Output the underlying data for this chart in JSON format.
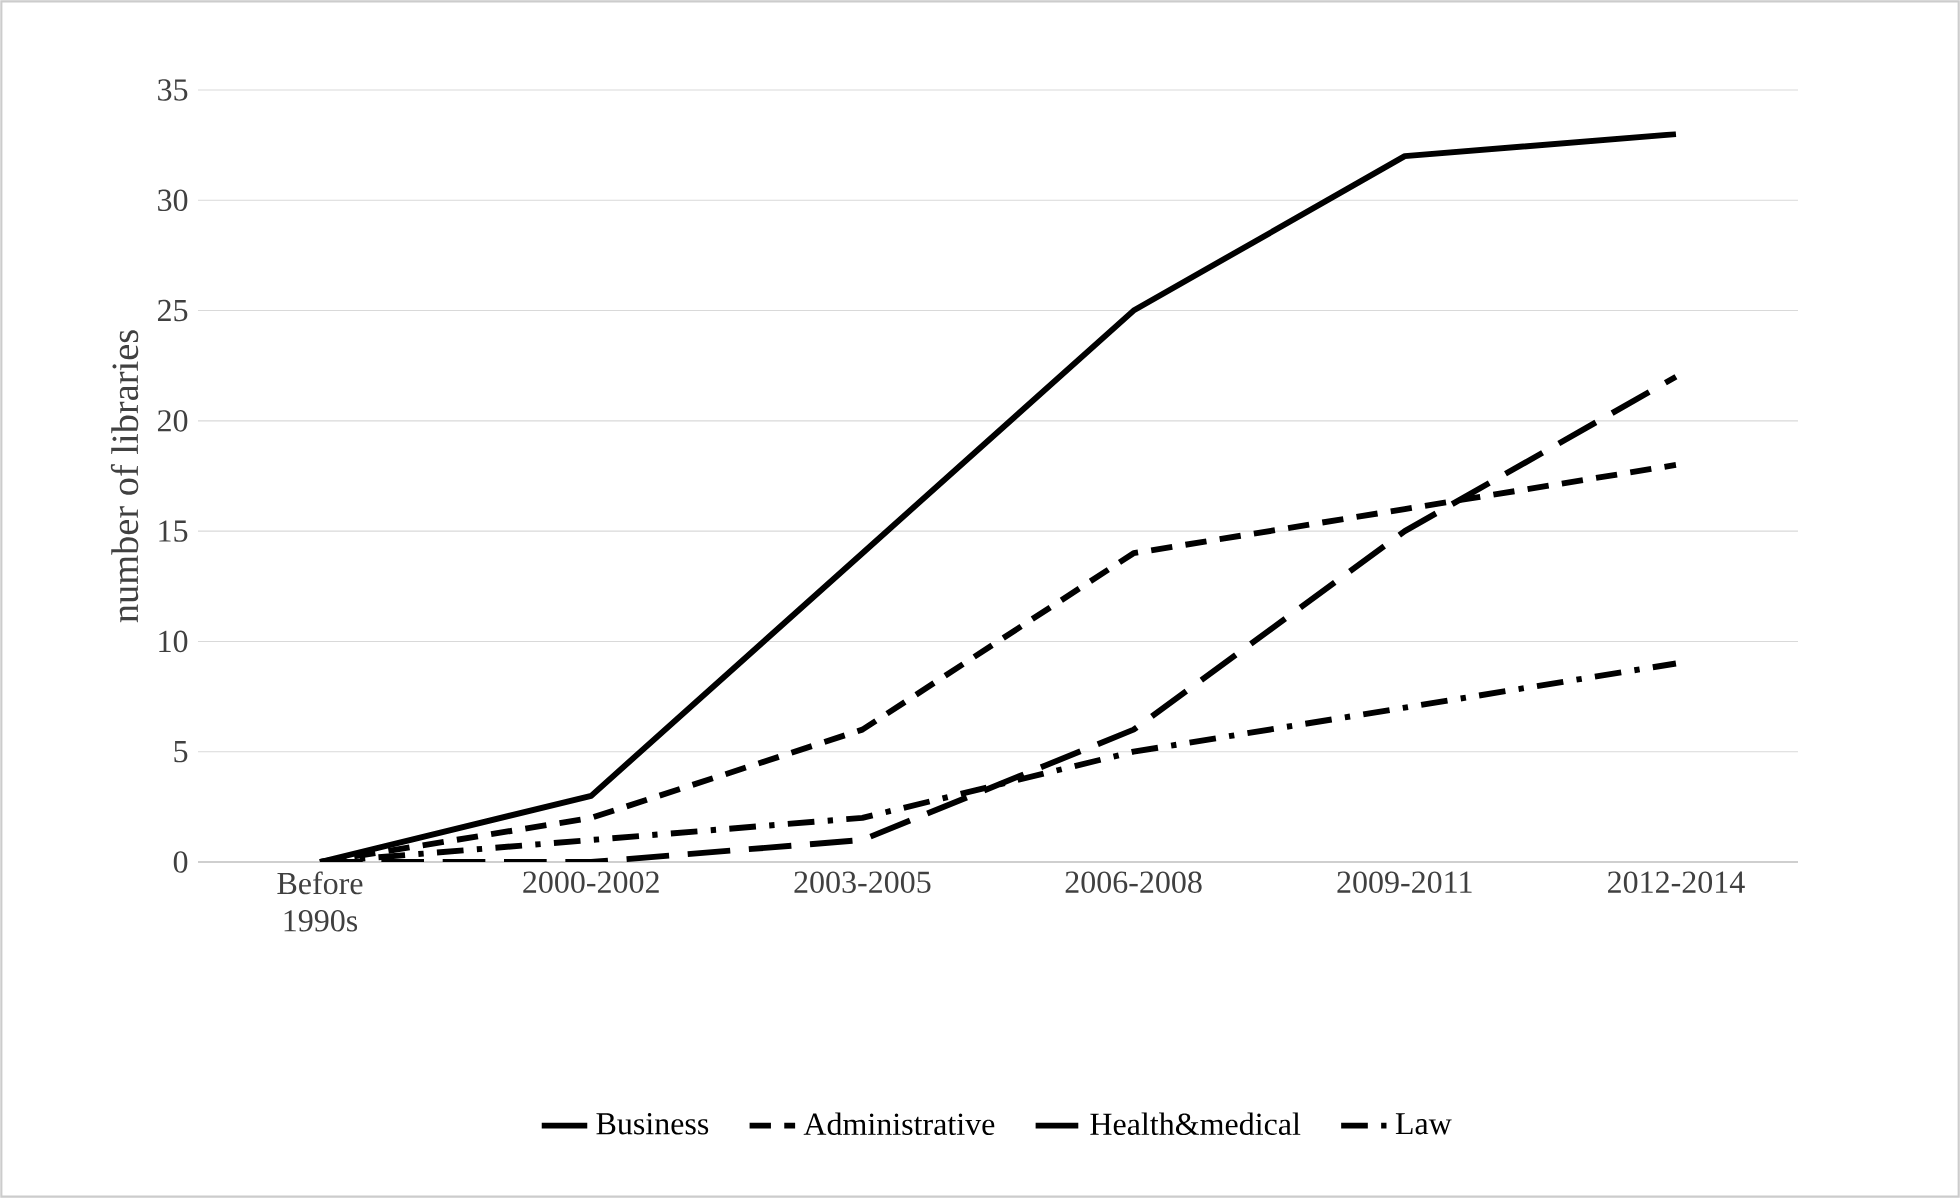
{
  "chart_data": {
    "type": "line",
    "ylabel": "number of libraries",
    "categories": [
      "Before 1990s",
      "2000-2002",
      "2003-2005",
      "2006-2008",
      "2009-2011",
      "2012-2014"
    ],
    "series": [
      {
        "name": "Business",
        "color": "#000000",
        "line_style": "solid",
        "values": [
          0,
          3,
          14,
          25,
          32,
          33
        ]
      },
      {
        "name": "Administrative",
        "color": "#000000",
        "line_style": "dashed",
        "values": [
          0,
          2,
          6,
          14,
          16,
          18
        ]
      },
      {
        "name": "Health&medical",
        "color": "#000000",
        "line_style": "dashed",
        "values": [
          0,
          0,
          1,
          6,
          15,
          22
        ]
      },
      {
        "name": "Law",
        "color": "#000000",
        "line_style": "dashdot",
        "values": [
          0,
          1,
          2,
          5,
          7,
          9
        ]
      }
    ],
    "ylim": [
      0,
      35
    ],
    "yticks": [
      0,
      5,
      10,
      15,
      20,
      25,
      30,
      35
    ],
    "grid": "y",
    "legend": "bottom",
    "marker": "none"
  }
}
